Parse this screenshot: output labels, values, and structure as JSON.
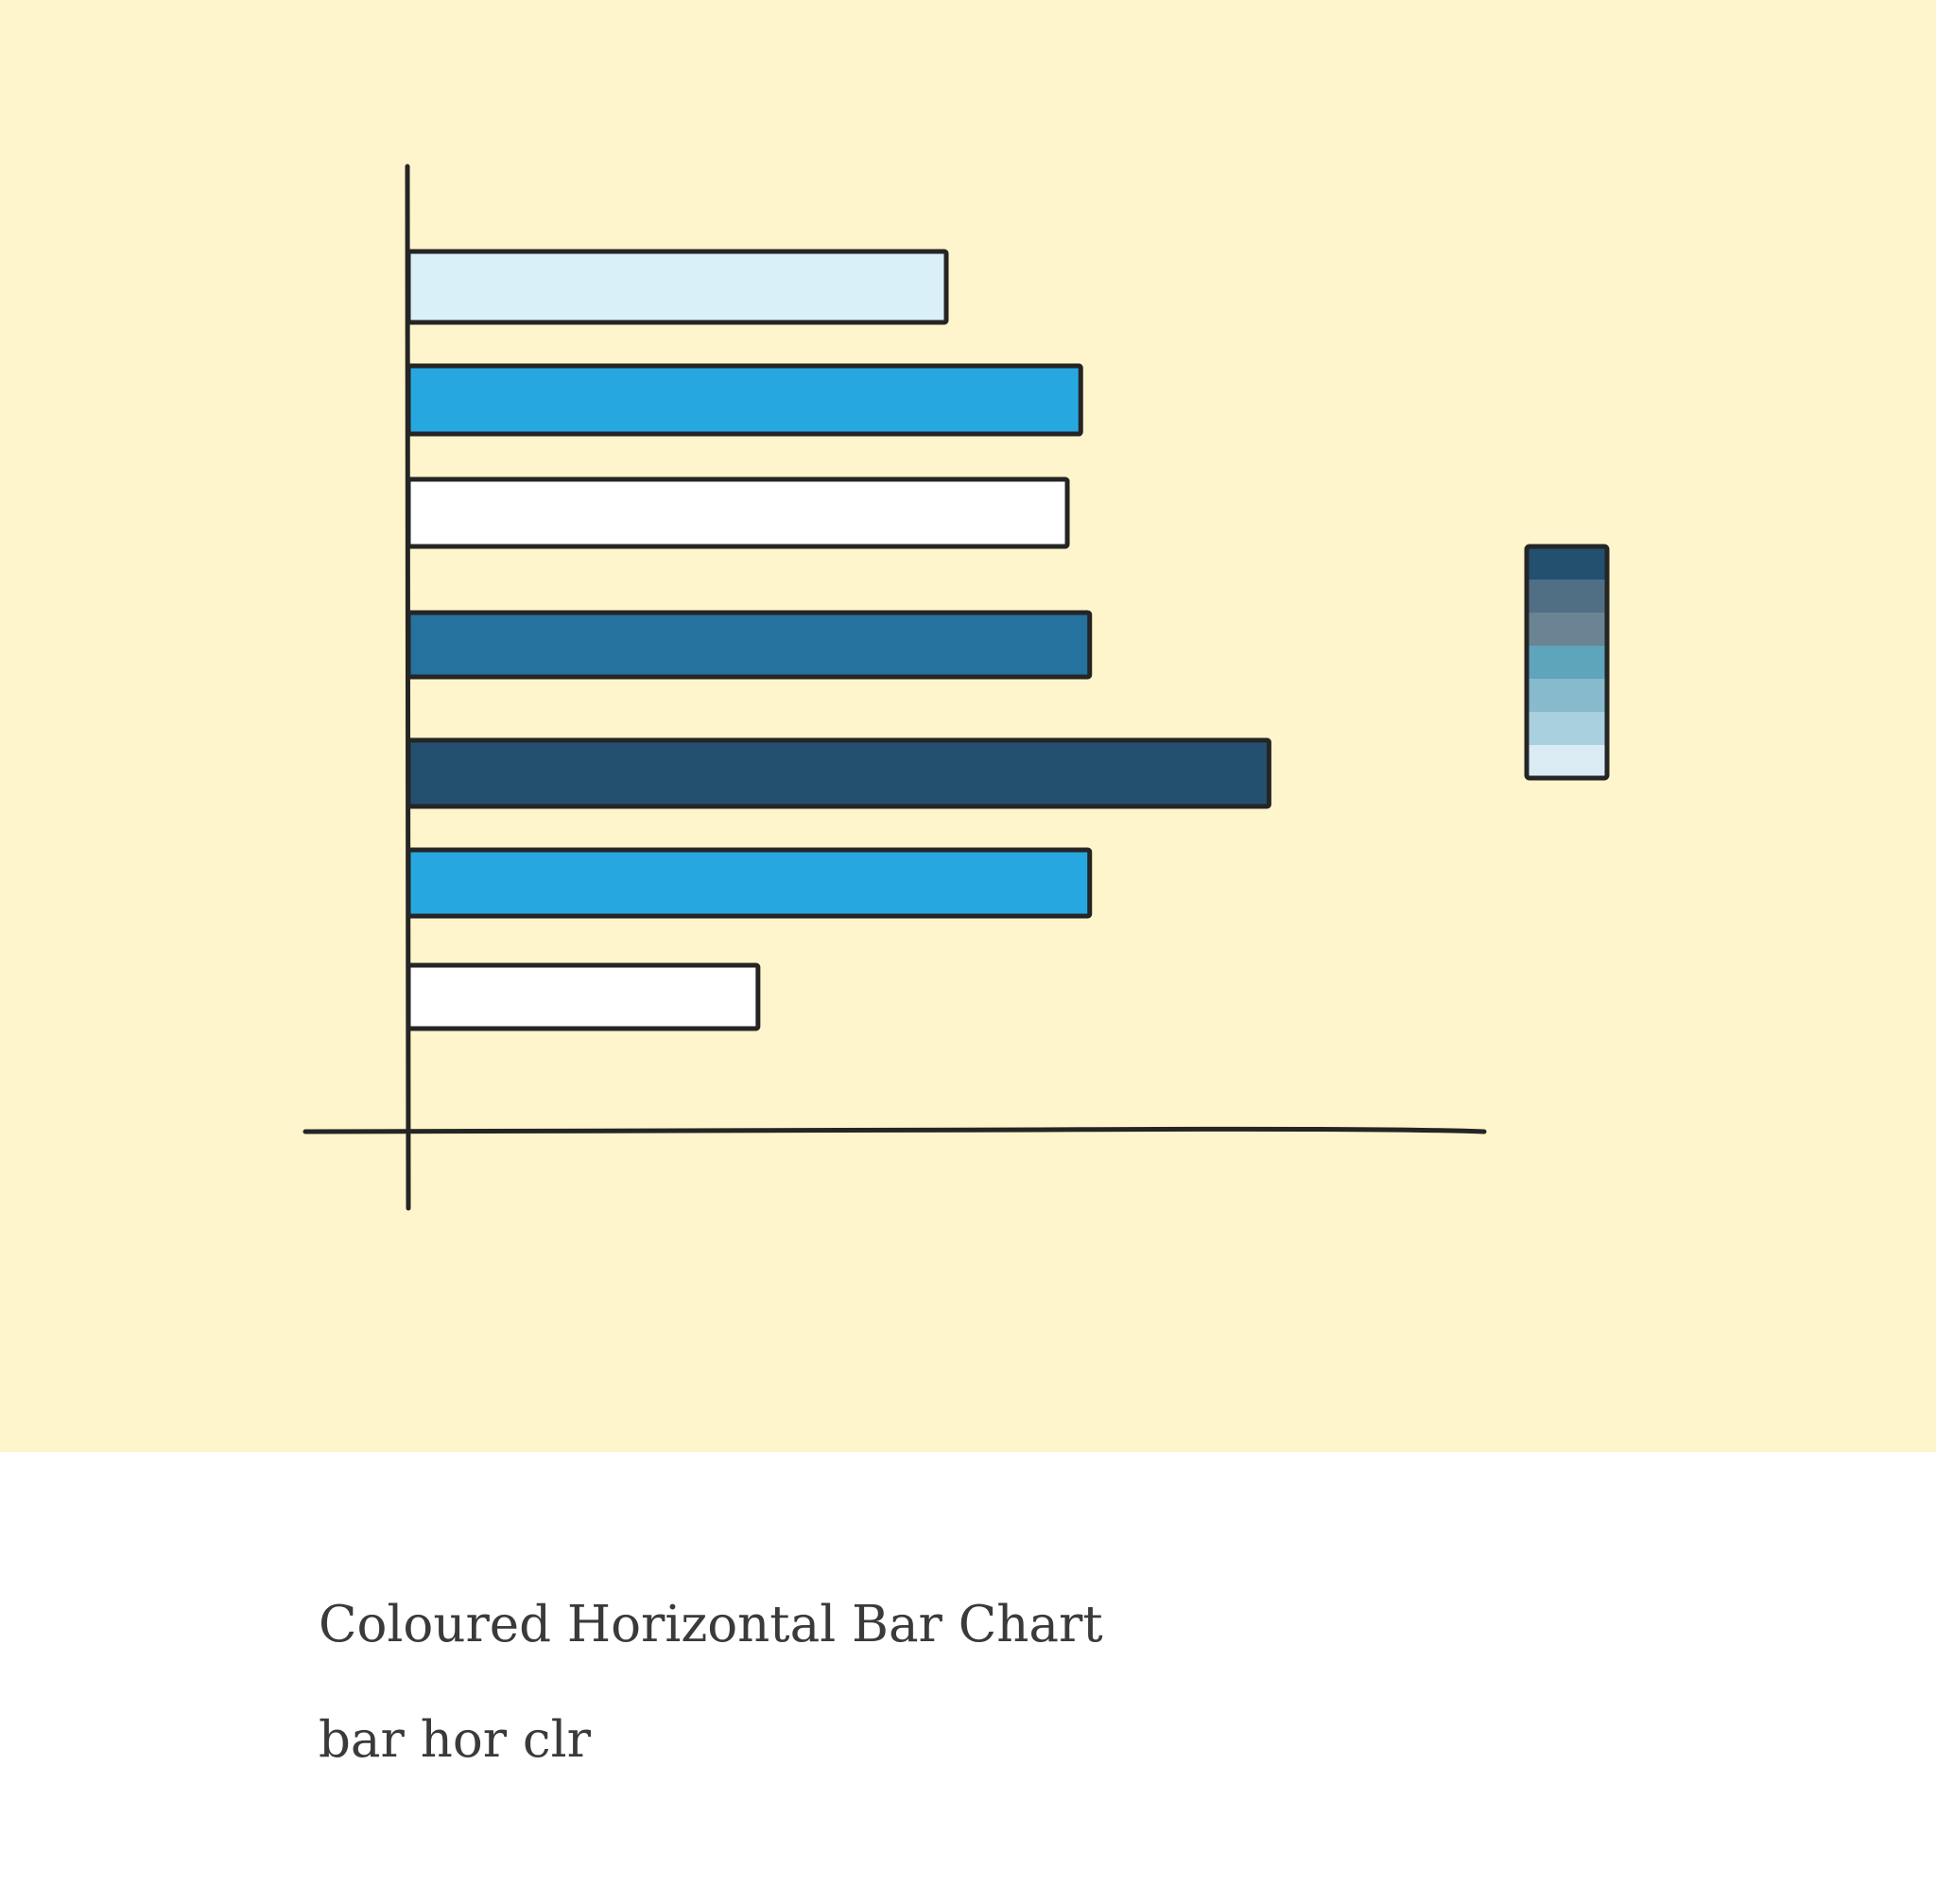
{
  "chart_data": {
    "type": "bar",
    "orientation": "horizontal",
    "title": "",
    "xlabel": "",
    "ylabel": "",
    "grid": false,
    "xlim": [
      0,
      120
    ],
    "bars": [
      {
        "value": 60,
        "color": "#DAF0F9"
      },
      {
        "value": 75,
        "color": "#27A7E0"
      },
      {
        "value": 73.5,
        "color": "#FFFFFF"
      },
      {
        "value": 76,
        "color": "#24729D"
      },
      {
        "value": 96,
        "color": "#23506F"
      },
      {
        "value": 76,
        "color": "#27A7E0"
      },
      {
        "value": 39,
        "color": "#FFFFFF"
      }
    ],
    "colorbar": {
      "colors": [
        "#23506F",
        "#506F85",
        "#6B8494",
        "#5EA4BB",
        "#86BACC",
        "#A9D0DE",
        "#DAEBF4"
      ]
    }
  },
  "caption": {
    "title": "Coloured Horizontal Bar Chart",
    "tags": "bar hor clr"
  },
  "colors": {
    "background": "#FFF5CC",
    "axis": "#252525"
  }
}
